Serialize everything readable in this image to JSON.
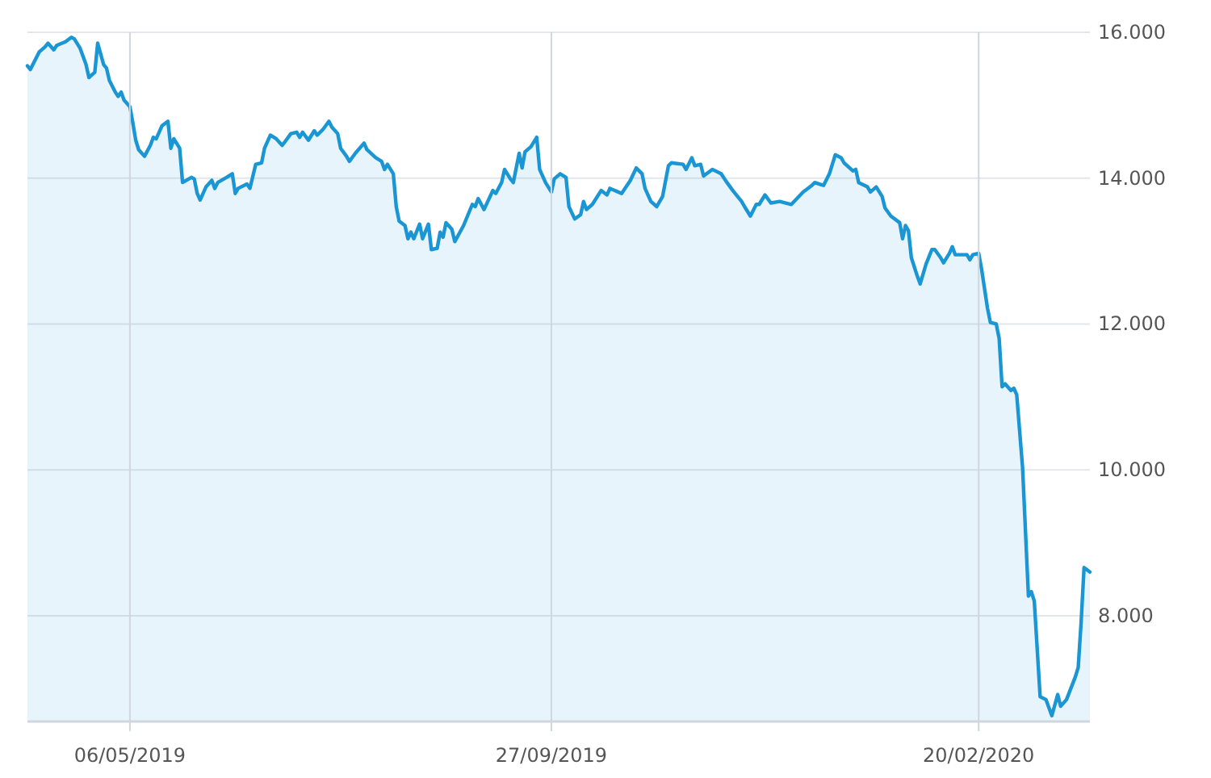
{
  "chart_data": {
    "type": "area",
    "xlim": [
      "2019-04-01",
      "2020-03-29"
    ],
    "ylim": [
      6550,
      16000
    ],
    "xticks": [
      {
        "value": "2019-05-06",
        "label": "06/05/2019"
      },
      {
        "value": "2019-09-27",
        "label": "27/09/2019"
      },
      {
        "value": "2020-02-20",
        "label": "20/02/2020"
      }
    ],
    "yticks": [
      {
        "value": 8000,
        "label": "8.000"
      },
      {
        "value": 10000,
        "label": "10.000"
      },
      {
        "value": 12000,
        "label": "12.000"
      },
      {
        "value": 14000,
        "label": "14.000"
      },
      {
        "value": 16000,
        "label": "16.000"
      }
    ],
    "grid": true,
    "series": [
      {
        "color": "#1a96d4",
        "x": [
          "2019-04-01",
          "2019-04-02",
          "2019-04-05",
          "2019-04-07",
          "2019-04-08",
          "2019-04-10",
          "2019-04-11",
          "2019-04-14",
          "2019-04-16",
          "2019-04-17",
          "2019-04-19",
          "2019-04-21",
          "2019-04-22",
          "2019-04-24",
          "2019-04-25",
          "2019-04-27",
          "2019-04-28",
          "2019-04-29",
          "2019-05-01",
          "2019-05-02",
          "2019-05-03",
          "2019-05-04",
          "2019-05-06",
          "2019-05-07",
          "2019-05-08",
          "2019-05-09",
          "2019-05-11",
          "2019-05-13",
          "2019-05-14",
          "2019-05-15",
          "2019-05-17",
          "2019-05-19",
          "2019-05-20",
          "2019-05-21",
          "2019-05-23",
          "2019-05-24",
          "2019-05-27",
          "2019-05-28",
          "2019-05-29",
          "2019-05-30",
          "2019-06-01",
          "2019-06-03",
          "2019-06-04",
          "2019-06-05",
          "2019-06-08",
          "2019-06-10",
          "2019-06-11",
          "2019-06-12",
          "2019-06-15",
          "2019-06-16",
          "2019-06-18",
          "2019-06-20",
          "2019-06-21",
          "2019-06-23",
          "2019-06-25",
          "2019-06-27",
          "2019-06-28",
          "2019-06-30",
          "2019-07-02",
          "2019-07-03",
          "2019-07-04",
          "2019-07-06",
          "2019-07-08",
          "2019-07-09",
          "2019-07-11",
          "2019-07-13",
          "2019-07-14",
          "2019-07-16",
          "2019-07-17",
          "2019-07-19",
          "2019-07-20",
          "2019-07-22",
          "2019-07-25",
          "2019-07-26",
          "2019-07-29",
          "2019-07-31",
          "2019-08-01",
          "2019-08-02",
          "2019-08-04",
          "2019-08-05",
          "2019-08-06",
          "2019-08-08",
          "2019-08-09",
          "2019-08-10",
          "2019-08-11",
          "2019-08-13",
          "2019-08-14",
          "2019-08-16",
          "2019-08-17",
          "2019-08-19",
          "2019-08-20",
          "2019-08-21",
          "2019-08-22",
          "2019-08-24",
          "2019-08-25",
          "2019-08-28",
          "2019-08-31",
          "2019-09-01",
          "2019-09-02",
          "2019-09-04",
          "2019-09-07",
          "2019-09-08",
          "2019-09-10",
          "2019-09-11",
          "2019-09-13",
          "2019-09-14",
          "2019-09-16",
          "2019-09-17",
          "2019-09-18",
          "2019-09-20",
          "2019-09-22",
          "2019-09-23",
          "2019-09-25",
          "2019-09-27",
          "2019-09-28",
          "2019-09-30",
          "2019-10-02",
          "2019-10-03",
          "2019-10-05",
          "2019-10-07",
          "2019-10-08",
          "2019-10-09",
          "2019-10-11",
          "2019-10-14",
          "2019-10-16",
          "2019-10-17",
          "2019-10-21",
          "2019-10-24",
          "2019-10-26",
          "2019-10-28",
          "2019-10-29",
          "2019-10-31",
          "2019-11-02",
          "2019-11-04",
          "2019-11-06",
          "2019-11-07",
          "2019-11-11",
          "2019-11-12",
          "2019-11-14",
          "2019-11-15",
          "2019-11-17",
          "2019-11-18",
          "2019-11-21",
          "2019-11-24",
          "2019-11-26",
          "2019-11-28",
          "2019-12-01",
          "2019-12-02",
          "2019-12-04",
          "2019-12-06",
          "2019-12-07",
          "2019-12-09",
          "2019-12-11",
          "2019-12-14",
          "2019-12-18",
          "2019-12-22",
          "2019-12-25",
          "2019-12-26",
          "2019-12-29",
          "2019-12-31",
          "2020-01-02",
          "2020-01-04",
          "2020-01-05",
          "2020-01-08",
          "2020-01-09",
          "2020-01-10",
          "2020-01-13",
          "2020-01-14",
          "2020-01-16",
          "2020-01-18",
          "2020-01-19",
          "2020-01-21",
          "2020-01-24",
          "2020-01-25",
          "2020-01-26",
          "2020-01-27",
          "2020-01-28",
          "2020-01-30",
          "2020-01-31",
          "2020-02-02",
          "2020-02-04",
          "2020-02-05",
          "2020-02-07",
          "2020-02-08",
          "2020-02-10",
          "2020-02-11",
          "2020-02-12",
          "2020-02-16",
          "2020-02-17",
          "2020-02-18",
          "2020-02-20",
          "2020-02-21",
          "2020-02-23",
          "2020-02-24",
          "2020-02-26",
          "2020-02-27",
          "2020-02-28",
          "2020-02-29",
          "2020-03-02",
          "2020-03-03",
          "2020-03-04",
          "2020-03-06",
          "2020-03-08",
          "2020-03-09",
          "2020-03-10",
          "2020-03-12",
          "2020-03-14",
          "2020-03-16",
          "2020-03-18",
          "2020-03-19",
          "2020-03-21",
          "2020-03-24",
          "2020-03-25",
          "2020-03-26",
          "2020-03-27",
          "2020-03-29"
        ],
        "values": [
          15540,
          15490,
          15730,
          15800,
          15850,
          15760,
          15820,
          15870,
          15930,
          15910,
          15780,
          15560,
          15380,
          15450,
          15850,
          15560,
          15510,
          15340,
          15180,
          15120,
          15180,
          15070,
          14980,
          14760,
          14520,
          14390,
          14300,
          14450,
          14560,
          14540,
          14720,
          14780,
          14410,
          14540,
          14410,
          13940,
          14010,
          13990,
          13790,
          13700,
          13880,
          13970,
          13860,
          13940,
          14010,
          14060,
          13790,
          13860,
          13920,
          13860,
          14190,
          14210,
          14410,
          14590,
          14540,
          14450,
          14500,
          14610,
          14630,
          14560,
          14630,
          14520,
          14650,
          14590,
          14670,
          14780,
          14700,
          14610,
          14410,
          14300,
          14230,
          14340,
          14480,
          14390,
          14280,
          14230,
          14120,
          14190,
          14060,
          13610,
          13410,
          13350,
          13170,
          13260,
          13170,
          13370,
          13170,
          13370,
          13020,
          13040,
          13260,
          13190,
          13390,
          13300,
          13130,
          13350,
          13640,
          13610,
          13720,
          13570,
          13830,
          13790,
          13940,
          14120,
          13990,
          13940,
          14340,
          14140,
          14360,
          14430,
          14560,
          14120,
          13940,
          13810,
          13990,
          14060,
          14010,
          13610,
          13440,
          13500,
          13680,
          13570,
          13640,
          13830,
          13770,
          13860,
          13790,
          13970,
          14140,
          14060,
          13860,
          13680,
          13610,
          13750,
          14170,
          14210,
          14190,
          14120,
          14280,
          14170,
          14190,
          14030,
          14120,
          14060,
          13940,
          13830,
          13680,
          13610,
          13480,
          13640,
          13640,
          13770,
          13660,
          13680,
          13640,
          13810,
          13900,
          13940,
          13900,
          14060,
          14320,
          14280,
          14210,
          14100,
          14120,
          13940,
          13880,
          13810,
          13880,
          13750,
          13590,
          13480,
          13390,
          13170,
          13350,
          13280,
          12910,
          12660,
          12550,
          12820,
          13020,
          13020,
          12910,
          12840,
          12970,
          13060,
          12950,
          12950,
          12880,
          12950,
          12970,
          12750,
          12220,
          12020,
          12000,
          11800,
          11140,
          11180,
          11090,
          11120,
          11030,
          10030,
          8270,
          8330,
          8200,
          6890,
          6850,
          6630,
          6920,
          6760,
          6850,
          7160,
          7290,
          7910,
          8660,
          8600
        ]
      }
    ]
  }
}
